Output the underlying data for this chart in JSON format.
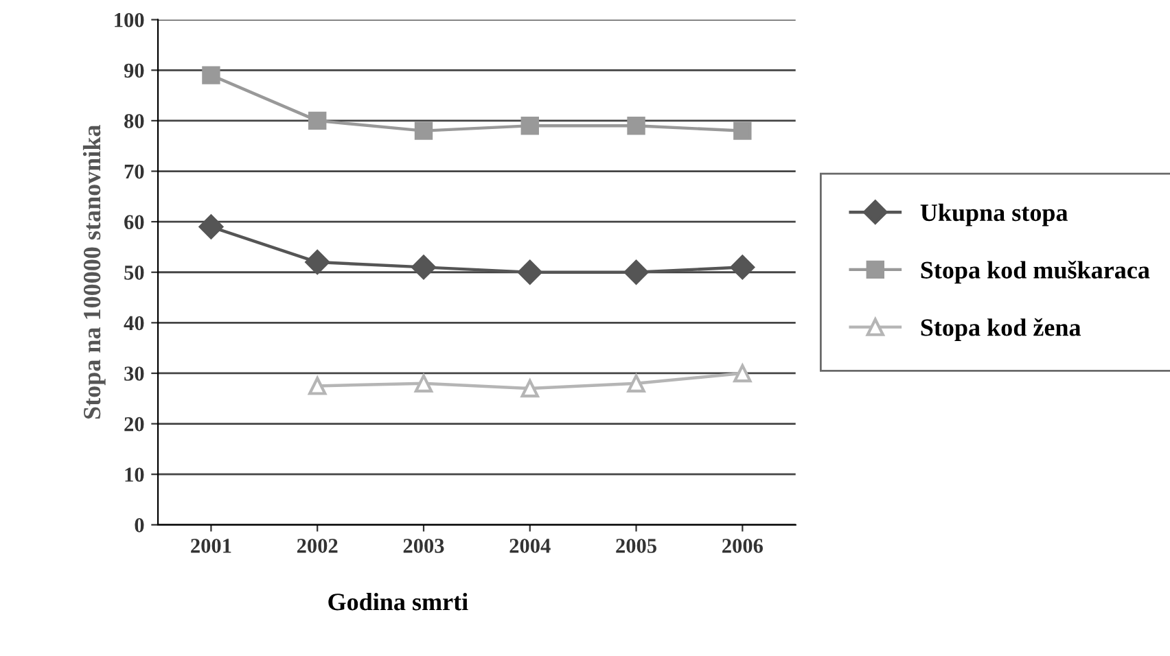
{
  "chart_data": {
    "type": "line",
    "xlabel": "Godina smrti",
    "ylabel": "Stopa na 100000 stanovnika",
    "categories": [
      "2001",
      "2002",
      "2003",
      "2004",
      "2005",
      "2006"
    ],
    "series": [
      {
        "name": "Ukupna stopa",
        "color": "#555555",
        "marker": "diamond",
        "values": [
          59,
          52,
          51,
          50,
          50,
          51
        ]
      },
      {
        "name": "Stopa kod muškaraca",
        "color": "#999999",
        "marker": "square",
        "values": [
          89,
          80,
          78,
          79,
          79,
          78
        ]
      },
      {
        "name": "Stopa kod žena",
        "color": "#b5b5b5",
        "marker": "triangle",
        "values": [
          null,
          27.5,
          28,
          27,
          28,
          30
        ]
      }
    ],
    "ylim": [
      0,
      100
    ],
    "yticks": [
      0,
      10,
      20,
      30,
      40,
      50,
      60,
      70,
      80,
      90,
      100
    ],
    "grid": "y",
    "legend": "right"
  }
}
